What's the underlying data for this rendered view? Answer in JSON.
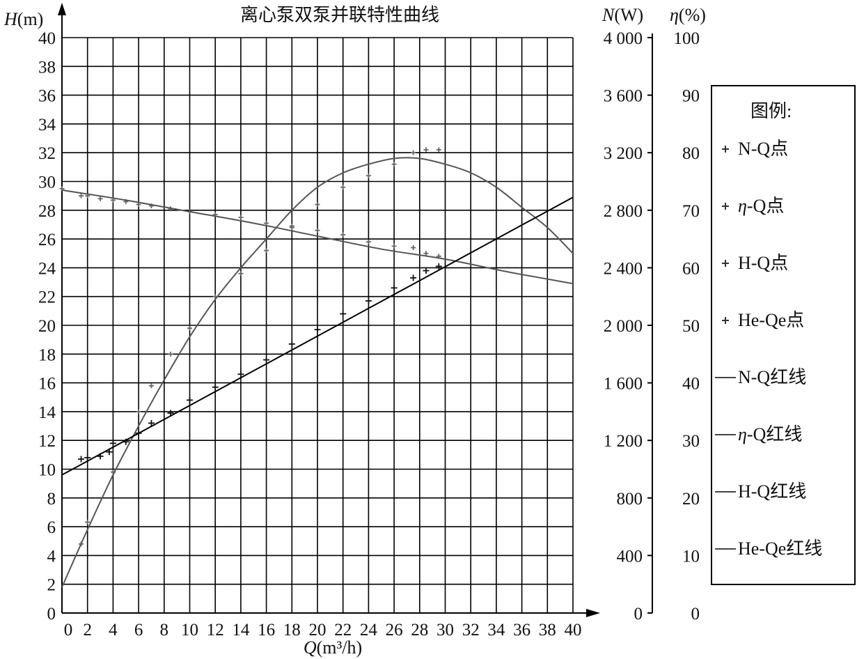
{
  "chart_data": {
    "type": "scatter",
    "title": "离心泵双泵并联特性曲线",
    "left_axis_label": {
      "italic": "H",
      "unit": "(m)"
    },
    "x_axis_label": {
      "italic": "Q",
      "unit": "(m³/h)"
    },
    "n_axis_label": {
      "italic": "N",
      "unit": "(W)"
    },
    "eta_axis_label": {
      "italic": "η",
      "unit": "(%)"
    },
    "xlim": [
      0,
      40
    ],
    "ylim": [
      0,
      40
    ],
    "x_ticks": [
      "0",
      "2",
      "4",
      "6",
      "8",
      "10",
      "12",
      "14",
      "16",
      "18",
      "20",
      "22",
      "24",
      "26",
      "28",
      "30",
      "32",
      "34",
      "36",
      "38",
      "40"
    ],
    "y_ticks": [
      "0",
      "2",
      "4",
      "6",
      "8",
      "10",
      "12",
      "14",
      "16",
      "18",
      "20",
      "22",
      "24",
      "26",
      "28",
      "30",
      "32",
      "34",
      "36",
      "38",
      "40"
    ],
    "n_ticks": [
      "0",
      "400",
      "800",
      "1 200",
      "1 600",
      "2 000",
      "2 400",
      "2 800",
      "3 200",
      "3 600",
      "4 000"
    ],
    "eta_ticks": [
      "0",
      "10",
      "20",
      "30",
      "40",
      "50",
      "60",
      "70",
      "80",
      "90",
      "100"
    ],
    "legend": {
      "title": "图例:",
      "items": [
        {
          "kind": "point",
          "label": "N-Q点"
        },
        {
          "kind": "point",
          "label": "η-Q点",
          "italic_prefix": "η"
        },
        {
          "kind": "point",
          "label": "H-Q点"
        },
        {
          "kind": "point",
          "label": "He-Qe点"
        },
        {
          "kind": "line",
          "label": "N-Q红线"
        },
        {
          "kind": "line",
          "label": "η-Q红线",
          "italic_prefix": "η"
        },
        {
          "kind": "line",
          "label": "H-Q红线"
        },
        {
          "kind": "line",
          "label": "He-Qe红线"
        }
      ]
    },
    "series": [
      {
        "name": "η-Q点",
        "axis": "eta",
        "mode": "markers",
        "points": [
          [
            1.5,
            12
          ],
          [
            2,
            15.8
          ],
          [
            4,
            24.5
          ],
          [
            6,
            35
          ],
          [
            7,
            39.5
          ],
          [
            8.5,
            45
          ],
          [
            10,
            49.5
          ],
          [
            12,
            55
          ],
          [
            14,
            59
          ],
          [
            16,
            63
          ],
          [
            18,
            67
          ],
          [
            20,
            71
          ],
          [
            22,
            74
          ],
          [
            24,
            76
          ],
          [
            26,
            78
          ],
          [
            27.5,
            80
          ],
          [
            28.5,
            80.5
          ],
          [
            29.5,
            80.5
          ]
        ]
      },
      {
        "name": "η-Q红线",
        "axis": "eta",
        "mode": "line",
        "points": [
          [
            0,
            4.5
          ],
          [
            2,
            14.5
          ],
          [
            4,
            24
          ],
          [
            6,
            32.5
          ],
          [
            8,
            40.5
          ],
          [
            10,
            48
          ],
          [
            12,
            54.5
          ],
          [
            14,
            60
          ],
          [
            16,
            65
          ],
          [
            18,
            70
          ],
          [
            20,
            74
          ],
          [
            22,
            76.5
          ],
          [
            24,
            78
          ],
          [
            26,
            79
          ],
          [
            28,
            79
          ],
          [
            30,
            78
          ],
          [
            32,
            76.5
          ],
          [
            34,
            74
          ],
          [
            36,
            70.5
          ],
          [
            38,
            67
          ],
          [
            40,
            62.5
          ]
        ]
      },
      {
        "name": "H-Q点",
        "axis": "H",
        "mode": "markers",
        "points": [
          [
            0,
            29.5
          ],
          [
            1.5,
            29
          ],
          [
            2,
            29
          ],
          [
            3,
            28.8
          ],
          [
            4,
            28.7
          ],
          [
            5,
            28.6
          ],
          [
            6,
            28.4
          ],
          [
            7,
            28.3
          ],
          [
            8.5,
            28.1
          ],
          [
            10,
            27.9
          ],
          [
            12,
            27.7
          ],
          [
            14,
            27.5
          ],
          [
            16,
            27.1
          ],
          [
            18,
            26.9
          ],
          [
            20,
            26.6
          ],
          [
            22,
            26.3
          ],
          [
            24,
            25.8
          ],
          [
            26,
            25.5
          ],
          [
            27.5,
            25.4
          ],
          [
            28.5,
            25
          ],
          [
            29.5,
            24.8
          ]
        ]
      },
      {
        "name": "H-Q红线",
        "axis": "H",
        "mode": "line",
        "points": [
          [
            0,
            29.4
          ],
          [
            5,
            28.7
          ],
          [
            10,
            27.9
          ],
          [
            15,
            27.1
          ],
          [
            20,
            26.2
          ],
          [
            25,
            25.3
          ],
          [
            30,
            24.6
          ],
          [
            35,
            23.7
          ],
          [
            40,
            22.9
          ]
        ]
      },
      {
        "name": "He-Qe点",
        "axis": "H",
        "mode": "markers",
        "points": [
          [
            1.5,
            10.7
          ],
          [
            2,
            10.8
          ],
          [
            3,
            10.9
          ],
          [
            3.7,
            11.2
          ],
          [
            4,
            11.8
          ],
          [
            5,
            11.9
          ],
          [
            6,
            12.5
          ],
          [
            7,
            13.2
          ],
          [
            8.5,
            13.9
          ],
          [
            10,
            14.8
          ],
          [
            12,
            15.7
          ],
          [
            14,
            16.6
          ],
          [
            16,
            17.6
          ],
          [
            18,
            18.7
          ],
          [
            20,
            19.7
          ],
          [
            22,
            20.8
          ],
          [
            24,
            21.7
          ],
          [
            26,
            22.6
          ],
          [
            27.5,
            23.3
          ],
          [
            28.5,
            23.8
          ],
          [
            29.5,
            24.1
          ]
        ]
      },
      {
        "name": "He-Qe红线",
        "axis": "H",
        "mode": "line",
        "points": [
          [
            0,
            9.6
          ],
          [
            40,
            28.9
          ]
        ]
      }
    ]
  }
}
